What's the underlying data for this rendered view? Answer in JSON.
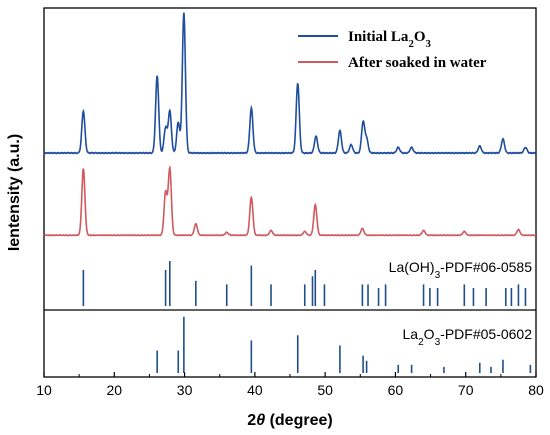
{
  "chart_data": {
    "type": "line",
    "title": "",
    "xlabel": "2θ (degree)",
    "xlabel_parts": {
      "symbol": "2",
      "italic": "θ",
      "rest": " (degree)"
    },
    "ylabel": "Ientensity (a.u.)",
    "xlim": [
      10,
      80
    ],
    "x_ticks": [
      10,
      20,
      30,
      40,
      50,
      60,
      70,
      80
    ],
    "y_ticks_shown": false,
    "legend_position": "top-right",
    "series": [
      {
        "name": "Initial La2O3",
        "name_parts": {
          "pre": "Initial La",
          "sub1": "2",
          "mid": "O",
          "sub2": "3"
        },
        "color": "#1f4e9e",
        "baseline": 0.05,
        "peaks": [
          [
            15.6,
            0.3
          ],
          [
            26.1,
            0.55
          ],
          [
            27.3,
            0.18
          ],
          [
            27.9,
            0.3
          ],
          [
            29.1,
            0.22
          ],
          [
            29.9,
            1.0
          ],
          [
            39.5,
            0.32
          ],
          [
            46.1,
            0.5
          ],
          [
            48.7,
            0.12
          ],
          [
            52.1,
            0.16
          ],
          [
            53.7,
            0.06
          ],
          [
            55.4,
            0.22
          ],
          [
            55.9,
            0.1
          ],
          [
            60.4,
            0.04
          ],
          [
            62.3,
            0.04
          ],
          [
            72.0,
            0.05
          ],
          [
            75.3,
            0.1
          ],
          [
            78.5,
            0.04
          ]
        ]
      },
      {
        "name": "After soaked in water",
        "color": "#d05a5f",
        "baseline": 0.05,
        "peaks": [
          [
            15.6,
            0.7
          ],
          [
            27.3,
            0.45
          ],
          [
            27.9,
            0.7
          ],
          [
            31.6,
            0.12
          ],
          [
            36.0,
            0.03
          ],
          [
            39.5,
            0.4
          ],
          [
            42.3,
            0.05
          ],
          [
            47.1,
            0.04
          ],
          [
            48.6,
            0.32
          ],
          [
            55.3,
            0.07
          ],
          [
            64.0,
            0.05
          ],
          [
            69.8,
            0.04
          ],
          [
            77.5,
            0.06
          ]
        ]
      }
    ],
    "reference_patterns": [
      {
        "label_parts": {
          "pre": "La(OH)",
          "sub1": "3",
          "rest": "-PDF#06-0585"
        },
        "lines": [
          [
            15.6,
            0.4
          ],
          [
            27.3,
            0.4
          ],
          [
            27.9,
            0.5
          ],
          [
            31.6,
            0.28
          ],
          [
            36.0,
            0.24
          ],
          [
            39.5,
            0.45
          ],
          [
            42.3,
            0.24
          ],
          [
            47.1,
            0.24
          ],
          [
            48.2,
            0.33
          ],
          [
            48.6,
            0.4
          ],
          [
            49.9,
            0.24
          ],
          [
            55.3,
            0.24
          ],
          [
            56.1,
            0.24
          ],
          [
            57.6,
            0.2
          ],
          [
            58.6,
            0.24
          ],
          [
            64.0,
            0.24
          ],
          [
            64.9,
            0.2
          ],
          [
            66.0,
            0.2
          ],
          [
            69.8,
            0.24
          ],
          [
            71.1,
            0.2
          ],
          [
            72.9,
            0.2
          ],
          [
            75.7,
            0.2
          ],
          [
            76.5,
            0.2
          ],
          [
            77.5,
            0.24
          ],
          [
            78.5,
            0.2
          ]
        ]
      },
      {
        "label_parts": {
          "pre": "La",
          "sub1": "2",
          "mid": "O",
          "sub2": "3",
          "rest": "-PDF#05-0602"
        },
        "lines": [
          [
            26.1,
            0.22
          ],
          [
            29.1,
            0.22
          ],
          [
            29.9,
            0.55
          ],
          [
            39.5,
            0.32
          ],
          [
            46.1,
            0.37
          ],
          [
            52.1,
            0.27
          ],
          [
            55.4,
            0.17
          ],
          [
            55.9,
            0.12
          ],
          [
            60.4,
            0.08
          ],
          [
            62.3,
            0.08
          ],
          [
            66.9,
            0.06
          ],
          [
            72.0,
            0.1
          ],
          [
            73.6,
            0.06
          ],
          [
            75.3,
            0.13
          ],
          [
            79.2,
            0.08
          ]
        ]
      }
    ]
  }
}
